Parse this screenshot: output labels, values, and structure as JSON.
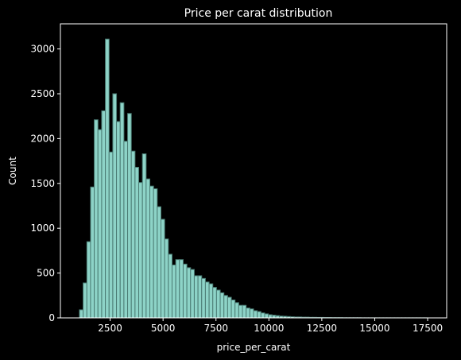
{
  "chart_data": {
    "type": "bar",
    "title": "Price per carat distribution",
    "xlabel": "price_per_carat",
    "ylabel": "Count",
    "xlim": [
      150,
      18400
    ],
    "ylim": [
      0,
      3280
    ],
    "xticks": [
      2500,
      5000,
      7500,
      10000,
      12500,
      15000,
      17500
    ],
    "xtick_labels": [
      "2500",
      "5000",
      "7500",
      "10000",
      "12500",
      "15000",
      "17500"
    ],
    "yticks": [
      0,
      500,
      1000,
      1500,
      2000,
      2500,
      3000
    ],
    "ytick_labels": [
      "0",
      "500",
      "1000",
      "1500",
      "2000",
      "2500",
      "3000"
    ],
    "grid": false,
    "legend": "none",
    "bar_color": "#8dd3c7",
    "bar_edge_color": "#4a7b73",
    "background_color": "#000000",
    "text_color": "#ffffff",
    "bin_start": 1050,
    "bin_width": 175,
    "values": [
      90,
      390,
      850,
      1460,
      2210,
      2100,
      2310,
      3110,
      1850,
      2500,
      2190,
      2400,
      1970,
      2280,
      1860,
      1680,
      1510,
      1830,
      1550,
      1470,
      1440,
      1240,
      1100,
      880,
      710,
      590,
      650,
      650,
      600,
      560,
      540,
      470,
      470,
      440,
      400,
      380,
      340,
      310,
      280,
      250,
      230,
      200,
      170,
      140,
      140,
      110,
      100,
      80,
      70,
      55,
      45,
      35,
      30,
      25,
      20,
      18,
      15,
      12,
      10,
      10,
      8,
      8,
      6,
      6,
      5,
      5,
      4,
      4,
      3,
      3,
      3,
      2,
      2,
      2,
      2,
      2,
      1,
      1,
      1,
      1,
      1,
      1,
      1,
      1,
      1,
      1,
      1,
      1,
      1,
      1,
      1,
      1,
      1,
      1
    ]
  }
}
